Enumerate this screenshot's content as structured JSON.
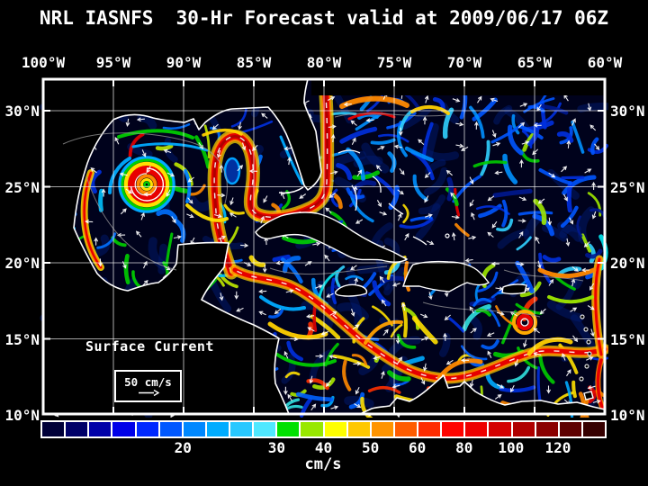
{
  "title": "NRL IASNFS  30-Hr Forecast valid at 2009/06/17 06Z",
  "axes": {
    "lon_ticks": [
      "100°W",
      "95°W",
      "90°W",
      "85°W",
      "80°W",
      "75°W",
      "70°W",
      "65°W",
      "60°W"
    ],
    "lat_ticks": [
      "30°N",
      "25°N",
      "20°N",
      "15°N",
      "10°N"
    ]
  },
  "map": {
    "legend_title": "Surface Current",
    "scale_label": "50 cm/s"
  },
  "colorbar": {
    "unit": "cm/s",
    "tick_labels": [
      "20",
      "30",
      "40",
      "50",
      "60",
      "80",
      "100",
      "120"
    ],
    "tick_boundary_index": [
      6,
      10,
      12,
      14,
      16,
      18,
      20,
      22
    ],
    "colors": [
      "#000038",
      "#000068",
      "#0000A8",
      "#0000E8",
      "#0028FF",
      "#0058FF",
      "#0088FF",
      "#00ACFF",
      "#28C8FF",
      "#50E8FF",
      "#00E000",
      "#98E800",
      "#FFFF00",
      "#FFC800",
      "#FF9400",
      "#FF5C00",
      "#FF2C00",
      "#FF0400",
      "#EE0000",
      "#D40000",
      "#B00000",
      "#8B0000",
      "#5E0000",
      "#360000"
    ]
  },
  "colors": {
    "background": "#000000",
    "text": "#ffffff",
    "grid": "#ffffff",
    "coastline": "#ffffff",
    "ocean_base": "#00021c"
  }
}
